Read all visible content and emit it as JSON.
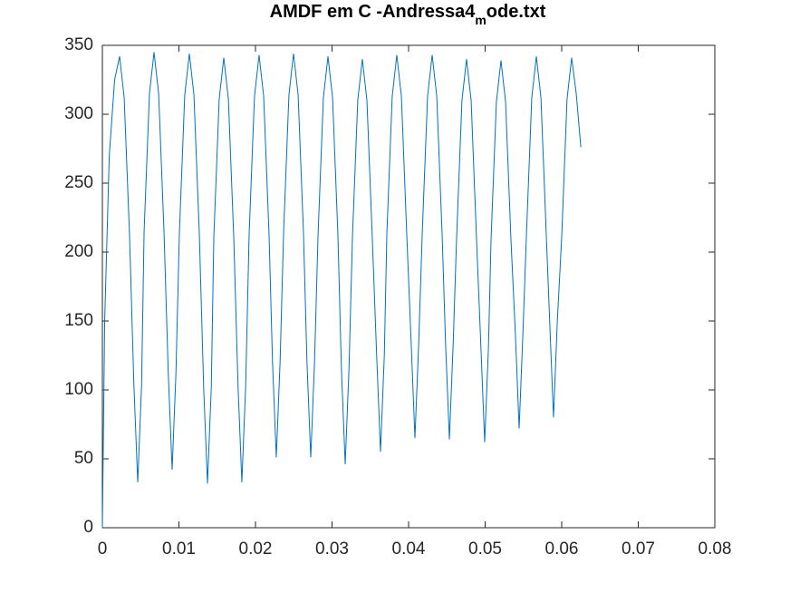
{
  "chart_data": {
    "type": "line",
    "title": [
      "AMDF em C -Andressa4",
      "m",
      "ode.txt"
    ],
    "x": [
      0,
      0.0003,
      0.0009,
      0.0016,
      0.00225,
      0.00285,
      0.00355,
      0.00412,
      0.00462,
      0.00512,
      0.00545,
      0.00615,
      0.00675,
      0.00735,
      0.00805,
      0.00861,
      0.00911,
      0.00961,
      0.01006,
      0.01076,
      0.01136,
      0.01196,
      0.01266,
      0.01323,
      0.01373,
      0.01423,
      0.01456,
      0.01526,
      0.01586,
      0.01646,
      0.01716,
      0.01772,
      0.01822,
      0.01872,
      0.01917,
      0.01987,
      0.02047,
      0.02107,
      0.02177,
      0.02222,
      0.02272,
      0.02322,
      0.02367,
      0.02437,
      0.02497,
      0.02557,
      0.02627,
      0.02672,
      0.02722,
      0.02772,
      0.02817,
      0.02887,
      0.02947,
      0.03007,
      0.03077,
      0.03122,
      0.03172,
      0.03222,
      0.03266,
      0.03336,
      0.03396,
      0.03456,
      0.03526,
      0.03583,
      0.03633,
      0.03683,
      0.03716,
      0.03786,
      0.03846,
      0.03906,
      0.03976,
      0.04033,
      0.04083,
      0.04133,
      0.04178,
      0.04248,
      0.04308,
      0.04368,
      0.04438,
      0.04483,
      0.04533,
      0.04583,
      0.04627,
      0.04697,
      0.04757,
      0.04817,
      0.04887,
      0.04944,
      0.04994,
      0.05044,
      0.05077,
      0.05147,
      0.05207,
      0.05267,
      0.05337,
      0.05394,
      0.05444,
      0.05494,
      0.05539,
      0.05609,
      0.05669,
      0.05729,
      0.05799,
      0.05843,
      0.05893,
      0.05943,
      0.06,
      0.0607,
      0.0613,
      0.0619,
      0.0625
    ],
    "series": [
      {
        "color": "#0072bd",
        "values": [
          0,
          150,
          270,
          325,
          342,
          312,
          212,
          103,
          33,
          103,
          215,
          315,
          345,
          315,
          215,
          112,
          42,
          112,
          214,
          314,
          344,
          314,
          214,
          102,
          32,
          102,
          211,
          311,
          341,
          311,
          211,
          103,
          33,
          103,
          213,
          313,
          343,
          313,
          213,
          121,
          51,
          121,
          214,
          314,
          344,
          314,
          214,
          121,
          51,
          121,
          212,
          312,
          342,
          312,
          212,
          116,
          46,
          116,
          210,
          310,
          340,
          310,
          210,
          125,
          55,
          125,
          213,
          313,
          343,
          313,
          213,
          135,
          65,
          135,
          213,
          313,
          343,
          313,
          213,
          134,
          64,
          134,
          210,
          310,
          340,
          310,
          210,
          132,
          62,
          132,
          209,
          309,
          339,
          309,
          209,
          142,
          72,
          142,
          212,
          312,
          342,
          312,
          212,
          150,
          80,
          150,
          211,
          311,
          341,
          315,
          276
        ]
      }
    ],
    "xlim": [
      0,
      0.08
    ],
    "xticks": [
      0,
      0.01,
      0.02,
      0.03,
      0.04,
      0.05,
      0.06,
      0.07,
      0.08
    ],
    "ylim": [
      0,
      350
    ],
    "yticks": [
      0,
      50,
      100,
      150,
      200,
      250,
      300,
      350
    ],
    "grid": false
  }
}
